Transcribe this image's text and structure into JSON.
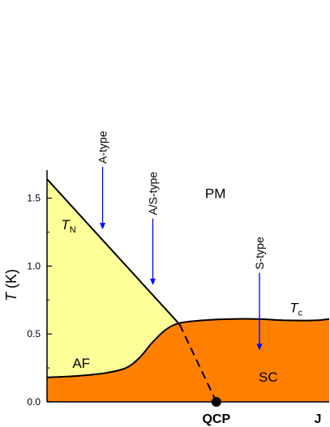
{
  "chart_data": {
    "type": "area",
    "title": "",
    "xlabel": "J",
    "ylabel_var": "T",
    "ylabel_unit": " (K)",
    "ylim": [
      0,
      1.7
    ],
    "yticks": [
      0.0,
      0.5,
      1.0,
      1.5
    ],
    "ytick_labels": [
      "0.0",
      "0.5",
      "1.0",
      "1.5"
    ],
    "xlim": [
      0,
      1
    ],
    "grid": false,
    "colors": {
      "af": "#ffff99",
      "sc": "#ff8000",
      "line": "#000000",
      "arrow": "#0000ff"
    },
    "series": [
      {
        "name": "T_N",
        "label_main": "T",
        "label_sub": "N",
        "x": [
          0.0,
          0.47,
          0.6
        ],
        "y": [
          1.64,
          0.57,
          0.0
        ],
        "style_solid_until_x": 0.47
      },
      {
        "name": "T_c",
        "label_main": "T",
        "label_sub": "c",
        "x": [
          0.0,
          0.1,
          0.2,
          0.28,
          0.33,
          0.37,
          0.42,
          0.47,
          0.55,
          0.65,
          0.75,
          0.85,
          0.95,
          1.0
        ],
        "y": [
          0.18,
          0.19,
          0.21,
          0.25,
          0.33,
          0.43,
          0.53,
          0.58,
          0.6,
          0.61,
          0.61,
          0.6,
          0.6,
          0.61
        ]
      }
    ],
    "regions": [
      {
        "id": "af",
        "label": "AF",
        "x": 0.09,
        "y": 0.25
      },
      {
        "id": "pm",
        "label": "PM",
        "x": 0.56,
        "y": 1.5
      },
      {
        "id": "sc",
        "label": "SC",
        "x": 0.75,
        "y": 0.15
      }
    ],
    "annotations": [
      {
        "label": "A-type",
        "x": 0.197,
        "y_from": 1.73,
        "y_to": 1.27
      },
      {
        "label": "A/S-type",
        "x": 0.375,
        "y_from": 1.35,
        "y_to": 0.86
      },
      {
        "label": "S-type",
        "x": 0.753,
        "y_from": 0.95,
        "y_to": 0.38
      }
    ],
    "qcp": {
      "label": "QCP",
      "x": 0.6,
      "y": 0.0
    }
  }
}
